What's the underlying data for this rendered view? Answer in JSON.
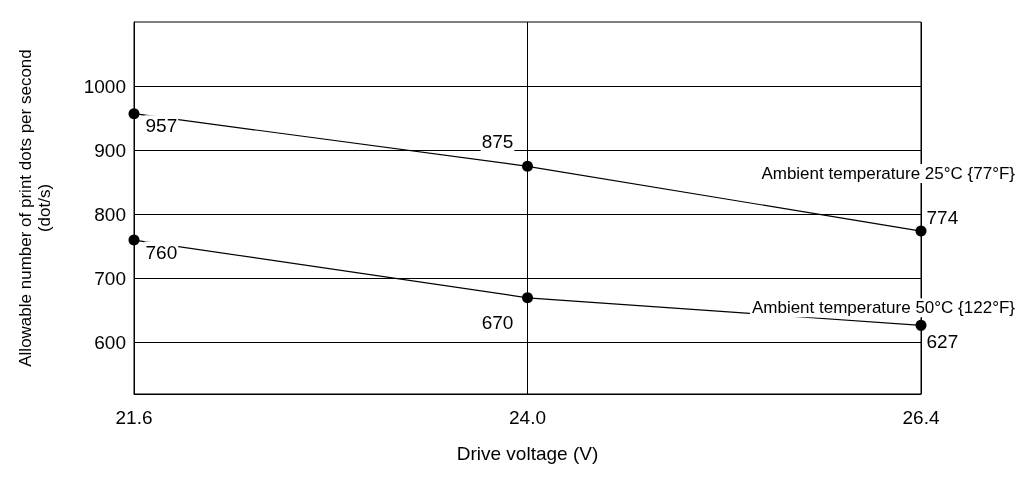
{
  "chart_data": {
    "type": "line",
    "xlabel": "Drive voltage (V)",
    "ylabel": "Allowable number of print dots per second\n(dot/s)",
    "x": [
      21.6,
      24.0,
      26.4
    ],
    "series": [
      {
        "name": "Ambient temperature 25°C {77°F}",
        "color": "#000000",
        "values": [
          957,
          875,
          774
        ]
      },
      {
        "name": "Ambient temperature 50°C {122°F}",
        "color": "#000000",
        "values": [
          760,
          670,
          627
        ]
      }
    ],
    "xlim": [
      21.6,
      26.4
    ],
    "xticks": [
      21.6,
      {
        "value": 24,
        "label": "24.0"
      },
      26.4
    ],
    "ylim": [
      520,
      1100
    ],
    "yticks": [
      600,
      700,
      800,
      900,
      1000
    ],
    "grid": true,
    "marker": "circle",
    "line_style": "solid",
    "data_labels": true
  }
}
